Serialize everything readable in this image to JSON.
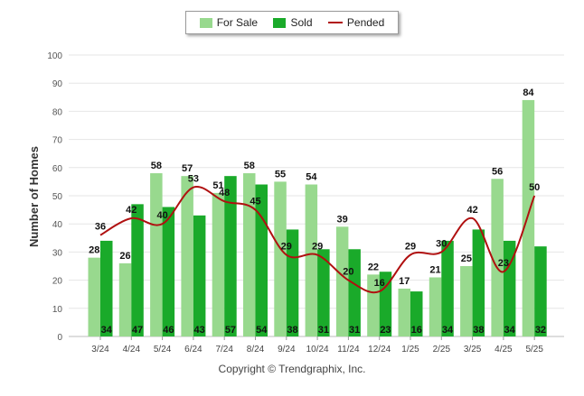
{
  "legend": {
    "for_sale": "For Sale",
    "sold": "Sold",
    "pended": "Pended"
  },
  "copyright": "Copyright © Trendgraphix, Inc.",
  "chart_data": {
    "type": "bar",
    "title": "",
    "xlabel": "",
    "ylabel": "Number of Homes",
    "ylim": [
      0,
      100
    ],
    "yticks": [
      0,
      10,
      20,
      30,
      40,
      50,
      60,
      70,
      80,
      90,
      100
    ],
    "grid": true,
    "legend_position": "top-center",
    "categories": [
      "3/24",
      "4/24",
      "5/24",
      "6/24",
      "7/24",
      "8/24",
      "9/24",
      "10/24",
      "11/24",
      "12/24",
      "1/25",
      "2/25",
      "3/25",
      "4/25",
      "5/25"
    ],
    "series": [
      {
        "name": "For Sale",
        "kind": "bar",
        "color": "#98d98e",
        "values": [
          28,
          26,
          58,
          57,
          51,
          58,
          55,
          54,
          39,
          22,
          17,
          21,
          25,
          56,
          84
        ]
      },
      {
        "name": "Sold",
        "kind": "bar",
        "color": "#1aaa2a",
        "values": [
          34,
          47,
          46,
          43,
          57,
          54,
          38,
          31,
          31,
          23,
          16,
          34,
          38,
          34,
          32
        ]
      },
      {
        "name": "Pended",
        "kind": "line",
        "color": "#b01010",
        "values": [
          36,
          42,
          40,
          53,
          48,
          45,
          29,
          29,
          20,
          16,
          29,
          30,
          42,
          23,
          50
        ]
      }
    ]
  }
}
